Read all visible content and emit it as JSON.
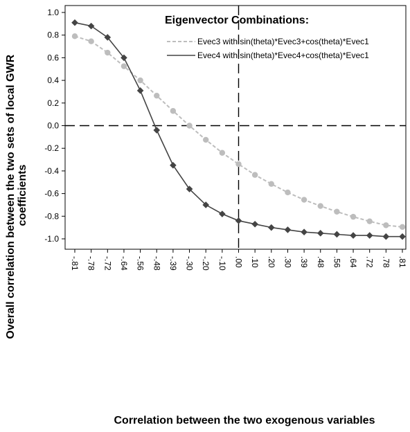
{
  "chart_data": {
    "type": "line",
    "xlabel": "Correlation between the two exogenous variables",
    "ylabel_lines": [
      "Overall correlation between the two sets of local GWR",
      "coefficients"
    ],
    "categories": [
      "-.81",
      "-.78",
      "-.72",
      "-.64",
      "-.56",
      "-.48",
      "-.39",
      "-.30",
      "-.20",
      "-.10",
      ".00",
      ".10",
      ".20",
      ".30",
      ".39",
      ".48",
      ".56",
      ".64",
      ".72",
      ".78",
      ".81"
    ],
    "ylim": [
      -1.05,
      1.05
    ],
    "yticks": [
      1.0,
      0.8,
      0.6,
      0.4,
      0.2,
      0.0,
      -0.2,
      -0.4,
      -0.6,
      -0.8,
      -1.0
    ],
    "ytick_labels": [
      "1.0",
      "0.8",
      "0.6",
      "0.4",
      "0.2",
      "0.0",
      "-0.2",
      "-0.4",
      "-0.6",
      "-0.8",
      "-1.0"
    ],
    "legend": {
      "title": "Eigenvector Combinations:",
      "placement": "top-right"
    },
    "reference_lines": {
      "y": 0.0,
      "x_category": ".00"
    },
    "series": [
      {
        "name": "Evec3 with sin(theta)*Evec3+cos(theta)*Evec1",
        "style": "dashed",
        "marker": "circle",
        "color": "#bdbdbd",
        "values": [
          0.79,
          0.745,
          0.645,
          0.525,
          0.4,
          0.265,
          0.13,
          0.0,
          -0.125,
          -0.24,
          -0.34,
          -0.435,
          -0.515,
          -0.59,
          -0.655,
          -0.71,
          -0.76,
          -0.805,
          -0.845,
          -0.88,
          -0.895
        ]
      },
      {
        "name": "Evec4 with sin(theta)*Evec4+cos(theta)*Evec1",
        "style": "solid",
        "marker": "diamond",
        "color": "#444444",
        "values": [
          0.91,
          0.88,
          0.78,
          0.6,
          0.31,
          -0.04,
          -0.35,
          -0.56,
          -0.7,
          -0.78,
          -0.84,
          -0.87,
          -0.9,
          -0.92,
          -0.94,
          -0.95,
          -0.96,
          -0.97,
          -0.97,
          -0.98,
          -0.98
        ]
      }
    ]
  }
}
